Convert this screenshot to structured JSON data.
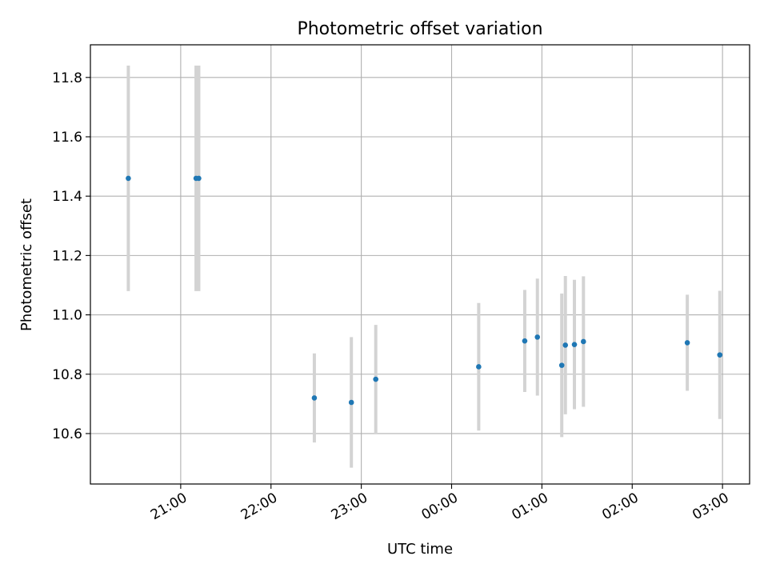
{
  "chart_data": {
    "type": "scatter",
    "title": "Photometric offset variation",
    "xlabel": "UTC time",
    "ylabel": "Photometric offset",
    "x_tick_labels": [
      "21:00",
      "22:00",
      "23:00",
      "00:00",
      "01:00",
      "02:00",
      "03:00"
    ],
    "x_tick_hours": [
      21,
      22,
      23,
      24,
      25,
      26,
      27
    ],
    "y_ticks": [
      10.6,
      10.8,
      11.0,
      11.2,
      11.4,
      11.6,
      11.8
    ],
    "xlim_hours": [
      20.0,
      27.3
    ],
    "ylim": [
      10.43,
      11.91
    ],
    "grid": true,
    "point_color": "#1f77b4",
    "errorbar_color": "#d3d3d3",
    "points": [
      {
        "time": "20:25",
        "t": 20.42,
        "y": 11.46,
        "err": 0.38
      },
      {
        "time": "21:10",
        "t": 21.17,
        "y": 11.46,
        "err": 0.38
      },
      {
        "time": "21:12",
        "t": 21.2,
        "y": 11.46,
        "err": 0.38
      },
      {
        "time": "22:29",
        "t": 22.48,
        "y": 10.72,
        "err": 0.15
      },
      {
        "time": "22:53",
        "t": 22.89,
        "y": 10.705,
        "err": 0.22
      },
      {
        "time": "23:10",
        "t": 23.16,
        "y": 10.783,
        "err": 0.183
      },
      {
        "time": "00:18",
        "t": 24.3,
        "y": 10.825,
        "err": 0.215
      },
      {
        "time": "00:49",
        "t": 24.81,
        "y": 10.912,
        "err": 0.172
      },
      {
        "time": "00:57",
        "t": 24.95,
        "y": 10.925,
        "err": 0.197
      },
      {
        "time": "01:13",
        "t": 25.22,
        "y": 10.83,
        "err": 0.242
      },
      {
        "time": "01:16",
        "t": 25.26,
        "y": 10.898,
        "err": 0.233
      },
      {
        "time": "01:21",
        "t": 25.36,
        "y": 10.9,
        "err": 0.218
      },
      {
        "time": "01:28",
        "t": 25.46,
        "y": 10.91,
        "err": 0.22
      },
      {
        "time": "02:37",
        "t": 26.61,
        "y": 10.906,
        "err": 0.162
      },
      {
        "time": "02:58",
        "t": 26.97,
        "y": 10.865,
        "err": 0.216
      }
    ]
  }
}
